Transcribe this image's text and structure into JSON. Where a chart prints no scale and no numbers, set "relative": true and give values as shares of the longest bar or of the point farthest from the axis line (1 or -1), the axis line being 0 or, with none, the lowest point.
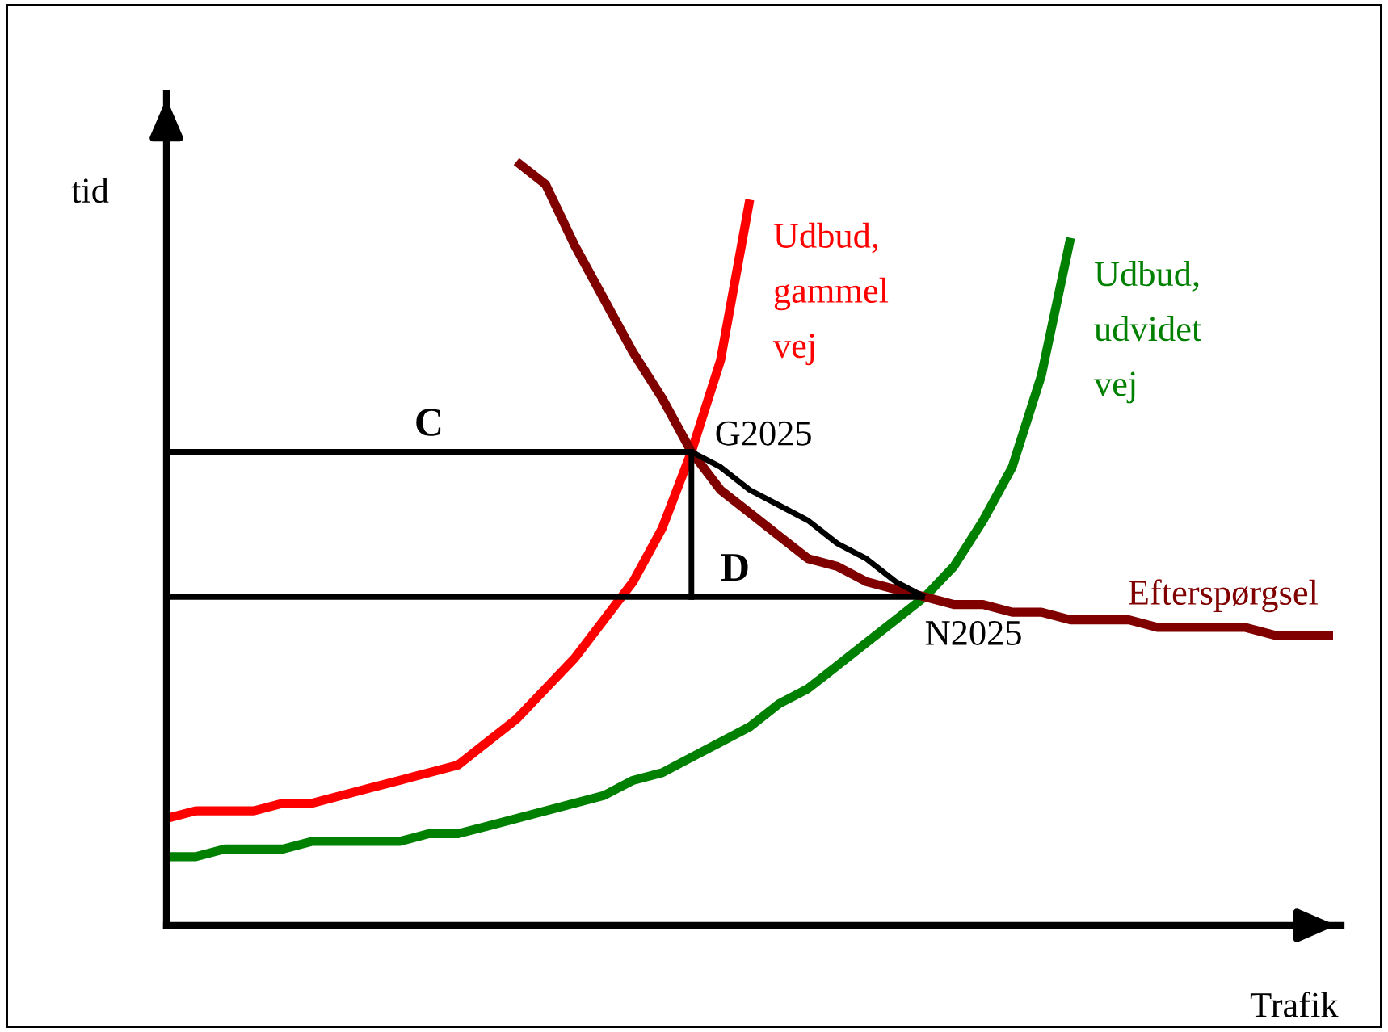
{
  "chart_data": {
    "type": "line",
    "relative": true,
    "xlabel": "Trafik",
    "ylabel": "tid",
    "grid": false,
    "legend": false,
    "marker": "none",
    "line_style": "solid",
    "categories": [
      null,
      null,
      null,
      null,
      null,
      null,
      null,
      null,
      null,
      null,
      null,
      null,
      null,
      null,
      null,
      null,
      null,
      null,
      null,
      null,
      null,
      null,
      null,
      null,
      null,
      null,
      null,
      null,
      null,
      null,
      null,
      null,
      null,
      null,
      null,
      null,
      null,
      null,
      null,
      null,
      null
    ],
    "series": [
      {
        "name": "Udbud,\ngammel\nvej",
        "color": "#ff0000",
        "values": [
          0.14,
          0.15,
          0.15,
          0.15,
          0.16,
          0.16,
          0.17,
          0.18,
          0.19,
          0.2,
          0.21,
          0.24,
          0.27,
          0.31,
          0.35,
          0.4,
          0.45,
          0.52,
          0.62,
          0.74,
          0.95,
          null,
          null,
          null,
          null,
          null,
          null,
          null,
          null,
          null,
          null,
          null,
          null,
          null,
          null,
          null,
          null,
          null,
          null,
          null,
          null
        ]
      },
      {
        "name": "Udbud,\nudvidet\nvej",
        "color": "#008000",
        "values": [
          0.09,
          0.09,
          0.1,
          0.1,
          0.1,
          0.11,
          0.11,
          0.11,
          0.11,
          0.12,
          0.12,
          0.13,
          0.14,
          0.15,
          0.16,
          0.17,
          0.19,
          0.2,
          0.22,
          0.24,
          0.26,
          0.29,
          0.31,
          0.34,
          0.37,
          0.4,
          0.43,
          0.47,
          0.53,
          0.6,
          0.72,
          0.9,
          null,
          null,
          null,
          null,
          null,
          null,
          null,
          null,
          null
        ]
      },
      {
        "name": "Efterspørgsel",
        "color": "#800000",
        "values": [
          null,
          null,
          null,
          null,
          null,
          null,
          null,
          null,
          null,
          null,
          null,
          null,
          1.0,
          0.97,
          0.89,
          0.82,
          0.75,
          0.69,
          0.62,
          0.57,
          0.54,
          0.51,
          0.48,
          0.47,
          0.45,
          0.44,
          0.43,
          0.42,
          0.42,
          0.41,
          0.41,
          0.4,
          0.4,
          0.4,
          0.39,
          0.39,
          0.39,
          0.39,
          0.38,
          0.38,
          0.38
        ]
      },
      {
        "color": "#000000",
        "values": [
          0.62,
          0.62,
          0.62,
          0.62,
          0.62,
          0.62,
          0.62,
          0.62,
          0.62,
          0.62,
          0.62,
          0.62,
          0.62,
          0.62,
          0.62,
          0.62,
          0.62,
          0.62,
          0.62,
          0.6,
          0.57,
          0.55,
          0.53,
          0.5,
          0.48,
          0.45,
          0.43,
          null,
          null,
          null,
          null,
          null,
          null,
          null,
          null,
          null,
          null,
          null,
          null,
          null,
          null
        ]
      },
      {
        "color": "#000000",
        "values": [
          0.43,
          0.43,
          0.43,
          0.43,
          0.43,
          0.43,
          0.43,
          0.43,
          0.43,
          0.43,
          0.43,
          0.43,
          0.43,
          0.43,
          0.43,
          0.43,
          0.43,
          0.43,
          0.43,
          0.43,
          0.43,
          0.43,
          0.43,
          0.43,
          0.43,
          0.43,
          0.43,
          null,
          null,
          null,
          null,
          null,
          null,
          null,
          null,
          null,
          null,
          null,
          null,
          null,
          null
        ]
      }
    ],
    "annotations": [
      "C",
      "D",
      "G2025",
      "N2025"
    ]
  }
}
